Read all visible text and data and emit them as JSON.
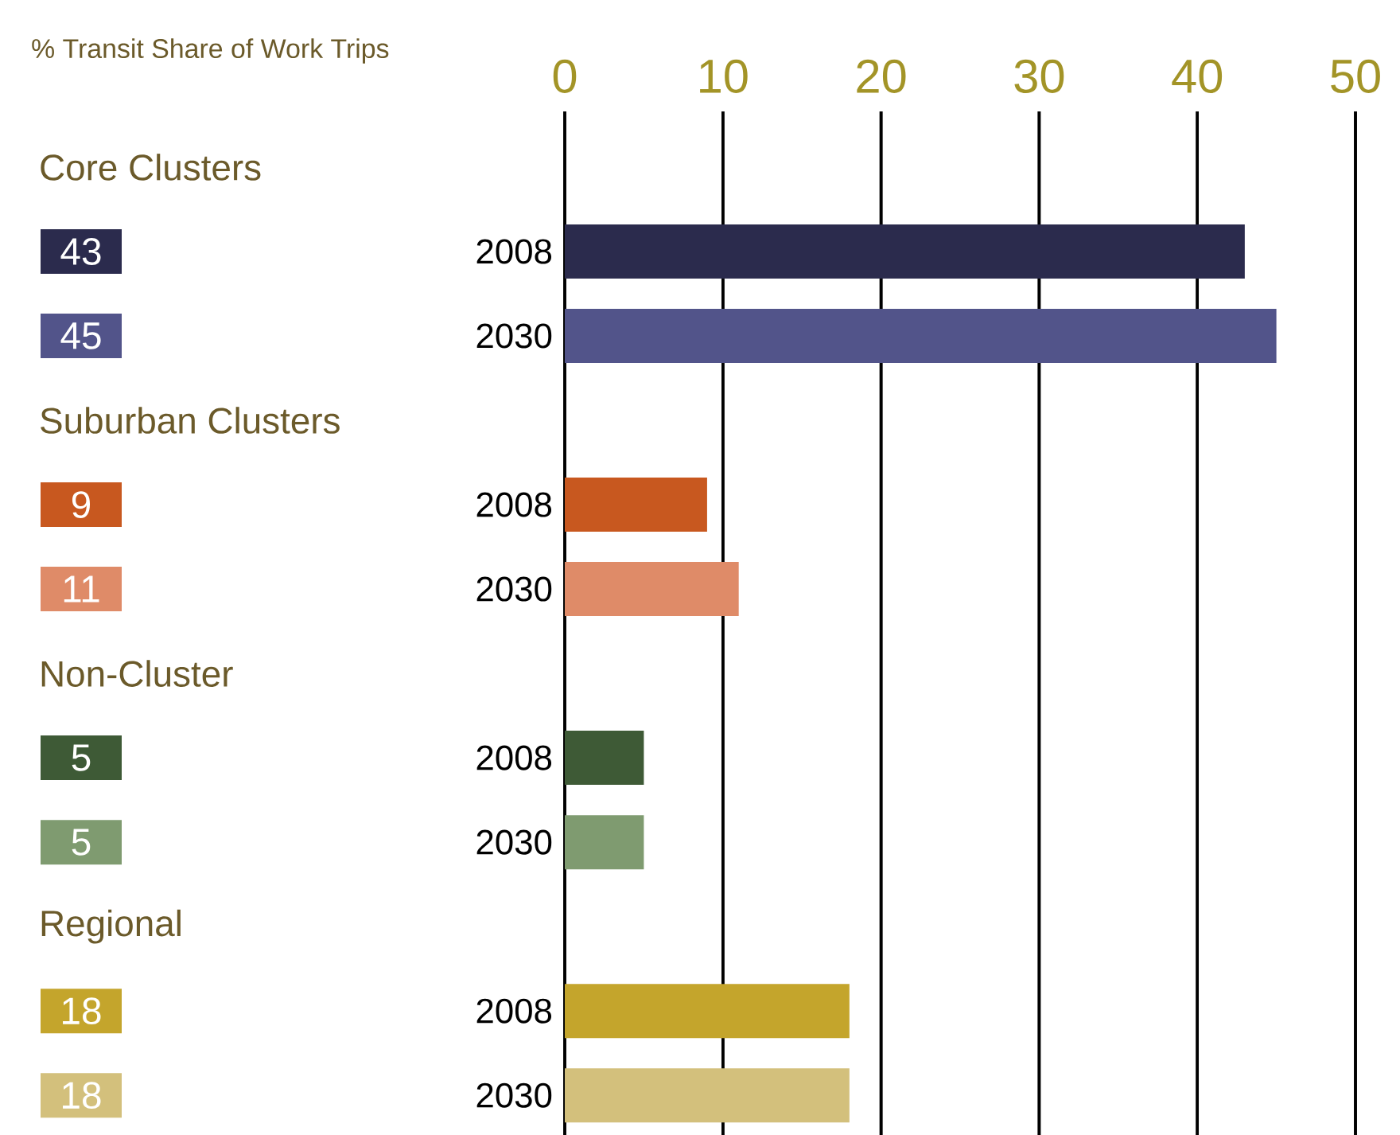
{
  "chart_data": {
    "type": "bar",
    "orientation": "horizontal",
    "title": "% Transit Share of Work Trips",
    "categories": [
      "2008",
      "2030",
      "2008",
      "2030",
      "2008",
      "2030",
      "2008",
      "2030"
    ],
    "values": [
      43,
      45,
      9,
      11,
      5,
      5,
      18,
      18
    ],
    "colors": [
      "#2b2b4d",
      "#52548a",
      "#c8581f",
      "#df8b68",
      "#3e5a36",
      "#7f9b70",
      "#c4a52c",
      "#d3c07c"
    ],
    "data_labels": true,
    "annotations": [
      "Core Clusters",
      "Suburban Clusters",
      "Non-Cluster",
      "Regional"
    ],
    "xlim": [
      0,
      50
    ],
    "xticks": [
      0,
      10,
      20,
      30,
      40,
      50
    ],
    "grid": "x"
  }
}
